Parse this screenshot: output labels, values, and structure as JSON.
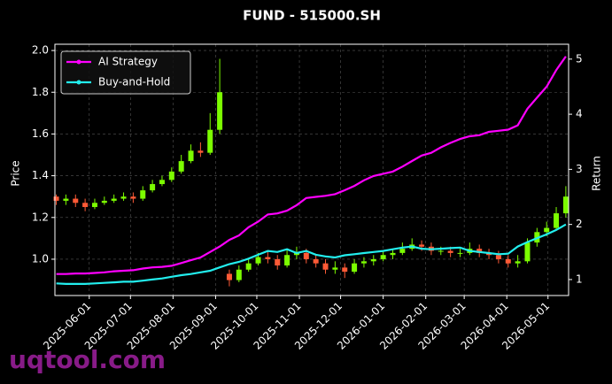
{
  "chart_data": {
    "type": "candlestick",
    "title": "FUND - 515000.SH",
    "ylabel": "Price",
    "y2label": "Return",
    "watermark": "uqtool.com",
    "grid": true,
    "legend": "upper left",
    "up_color": "#7cfc00",
    "down_color": "#ff5a36",
    "xlim": [
      "2025-05-07",
      "2026-05-16"
    ],
    "xticks": [
      "2025-06-01",
      "2025-07-01",
      "2025-08-01",
      "2025-09-01",
      "2025-10-01",
      "2025-11-01",
      "2025-12-01",
      "2026-01-01",
      "2026-02-01",
      "2026-03-01",
      "2026-04-01",
      "2026-05-01"
    ],
    "ylim": [
      0.826,
      2.03
    ],
    "yticks": [
      {
        "value": 1,
        "label": "1.0"
      },
      1.2,
      1.4,
      1.6,
      1.8,
      {
        "value": 2,
        "label": "2.0"
      }
    ],
    "y2lim": [
      0.71,
      5.27
    ],
    "y2ticks": [
      1,
      2,
      3,
      4,
      5
    ],
    "x": [
      "2025-05-08",
      "2025-05-15",
      "2025-05-22",
      "2025-05-29",
      "2025-06-05",
      "2025-06-12",
      "2025-06-19",
      "2025-06-26",
      "2025-07-03",
      "2025-07-10",
      "2025-07-17",
      "2025-07-24",
      "2025-07-31",
      "2025-08-07",
      "2025-08-14",
      "2025-08-21",
      "2025-08-28",
      "2025-09-04",
      "2025-09-11",
      "2025-09-18",
      "2025-09-25",
      "2025-10-02",
      "2025-10-09",
      "2025-10-16",
      "2025-10-23",
      "2025-10-30",
      "2025-11-06",
      "2025-11-13",
      "2025-11-20",
      "2025-11-27",
      "2025-12-04",
      "2025-12-11",
      "2025-12-18",
      "2025-12-25",
      "2026-01-01",
      "2026-01-08",
      "2026-01-15",
      "2026-01-22",
      "2026-01-29",
      "2026-02-05",
      "2026-02-12",
      "2026-02-19",
      "2026-02-26",
      "2026-03-05",
      "2026-03-12",
      "2026-03-19",
      "2026-03-26",
      "2026-04-02",
      "2026-04-09",
      "2026-04-16",
      "2026-04-23",
      "2026-04-30",
      "2026-05-07",
      "2026-05-14"
    ],
    "open": [
      1.3,
      1.28,
      1.29,
      1.27,
      1.25,
      1.27,
      1.28,
      1.29,
      1.3,
      1.29,
      1.33,
      1.36,
      1.38,
      1.42,
      1.47,
      1.52,
      1.51,
      1.62,
      0.93,
      0.9,
      0.95,
      0.98,
      1.01,
      1.0,
      0.97,
      1.02,
      1.03,
      1.0,
      0.98,
      0.95,
      0.96,
      0.94,
      0.98,
      0.99,
      1.0,
      1.02,
      1.03,
      1.05,
      1.07,
      1.06,
      1.04,
      1.04,
      1.03,
      1.03,
      1.05,
      1.03,
      1.02,
      1.0,
      0.98,
      0.99,
      1.08,
      1.13,
      1.15,
      1.22
    ],
    "high": [
      1.31,
      1.31,
      1.31,
      1.29,
      1.29,
      1.3,
      1.31,
      1.32,
      1.32,
      1.35,
      1.38,
      1.4,
      1.44,
      1.5,
      1.55,
      1.56,
      1.7,
      1.96,
      0.95,
      0.97,
      1.0,
      1.03,
      1.04,
      1.02,
      1.05,
      1.06,
      1.05,
      1.02,
      1.0,
      0.99,
      0.98,
      1.0,
      1.01,
      1.02,
      1.04,
      1.05,
      1.08,
      1.1,
      1.09,
      1.08,
      1.06,
      1.06,
      1.05,
      1.08,
      1.07,
      1.05,
      1.04,
      1.02,
      1.02,
      1.1,
      1.15,
      1.18,
      1.25,
      1.35
    ],
    "low": [
      1.26,
      1.26,
      1.25,
      1.23,
      1.24,
      1.26,
      1.27,
      1.28,
      1.27,
      1.28,
      1.32,
      1.35,
      1.37,
      1.41,
      1.46,
      1.49,
      1.5,
      1.6,
      0.87,
      0.89,
      0.94,
      0.97,
      0.98,
      0.95,
      0.96,
      1.0,
      0.98,
      0.96,
      0.93,
      0.93,
      0.91,
      0.93,
      0.96,
      0.97,
      0.99,
      1.0,
      1.02,
      1.04,
      1.04,
      1.02,
      1.02,
      1.01,
      1.01,
      1.02,
      1.01,
      1.0,
      0.98,
      0.96,
      0.96,
      0.98,
      1.06,
      1.11,
      1.14,
      1.2
    ],
    "close": [
      1.28,
      1.29,
      1.27,
      1.25,
      1.27,
      1.28,
      1.29,
      1.3,
      1.29,
      1.33,
      1.36,
      1.38,
      1.42,
      1.47,
      1.52,
      1.51,
      1.62,
      1.8,
      0.9,
      0.95,
      0.98,
      1.01,
      1.0,
      0.97,
      1.02,
      1.03,
      1.0,
      0.98,
      0.95,
      0.96,
      0.94,
      0.98,
      0.99,
      1.0,
      1.02,
      1.03,
      1.05,
      1.07,
      1.06,
      1.04,
      1.04,
      1.03,
      1.03,
      1.05,
      1.03,
      1.02,
      1.0,
      0.98,
      0.99,
      1.08,
      1.13,
      1.15,
      1.22,
      1.3
    ],
    "series": [
      {
        "name": "AI Strategy",
        "color": "#ff00ff",
        "axis": "y2",
        "values": [
          1.1,
          1.1,
          1.11,
          1.11,
          1.12,
          1.13,
          1.15,
          1.16,
          1.17,
          1.2,
          1.22,
          1.23,
          1.25,
          1.3,
          1.35,
          1.4,
          1.5,
          1.6,
          1.72,
          1.8,
          1.95,
          2.05,
          2.18,
          2.2,
          2.25,
          2.35,
          2.48,
          2.5,
          2.52,
          2.55,
          2.62,
          2.7,
          2.8,
          2.88,
          2.92,
          2.96,
          3.05,
          3.15,
          3.25,
          3.3,
          3.4,
          3.48,
          3.55,
          3.6,
          3.62,
          3.68,
          3.7,
          3.72,
          3.8,
          4.1,
          4.3,
          4.5,
          4.8,
          5.05
        ]
      },
      {
        "name": "Buy-and-Hold",
        "color": "#22eeee",
        "axis": "y2",
        "values": [
          0.93,
          0.92,
          0.92,
          0.92,
          0.93,
          0.94,
          0.95,
          0.96,
          0.96,
          0.98,
          1.0,
          1.02,
          1.05,
          1.08,
          1.1,
          1.13,
          1.16,
          1.22,
          1.28,
          1.32,
          1.38,
          1.45,
          1.52,
          1.5,
          1.55,
          1.48,
          1.52,
          1.45,
          1.42,
          1.4,
          1.44,
          1.46,
          1.48,
          1.5,
          1.52,
          1.55,
          1.58,
          1.6,
          1.56,
          1.55,
          1.56,
          1.57,
          1.58,
          1.52,
          1.5,
          1.48,
          1.46,
          1.47,
          1.6,
          1.68,
          1.75,
          1.82,
          1.9,
          2.0
        ]
      }
    ]
  }
}
